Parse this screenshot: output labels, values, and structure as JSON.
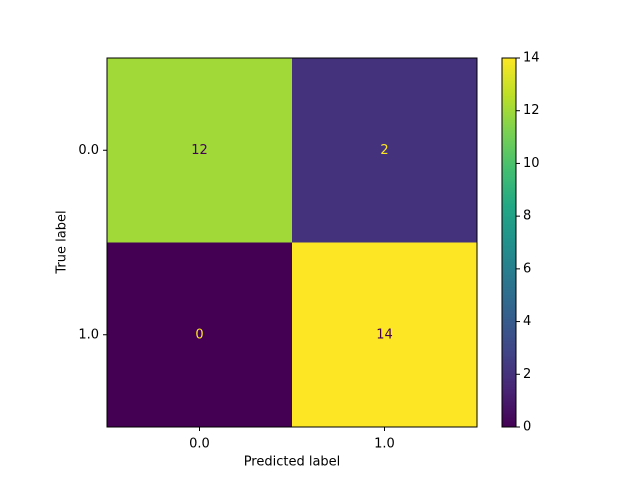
{
  "chart_data": {
    "type": "heatmap",
    "x_label": "Predicted label",
    "y_label": "True label",
    "x_categories": [
      "0.0",
      "1.0"
    ],
    "y_categories": [
      "0.0",
      "1.0"
    ],
    "values": [
      [
        12,
        2
      ],
      [
        0,
        14
      ]
    ],
    "colormap": "viridis",
    "colorbar": {
      "lim": [
        0,
        14
      ],
      "ticks": [
        0,
        2,
        4,
        6,
        8,
        10,
        12,
        14
      ]
    }
  }
}
